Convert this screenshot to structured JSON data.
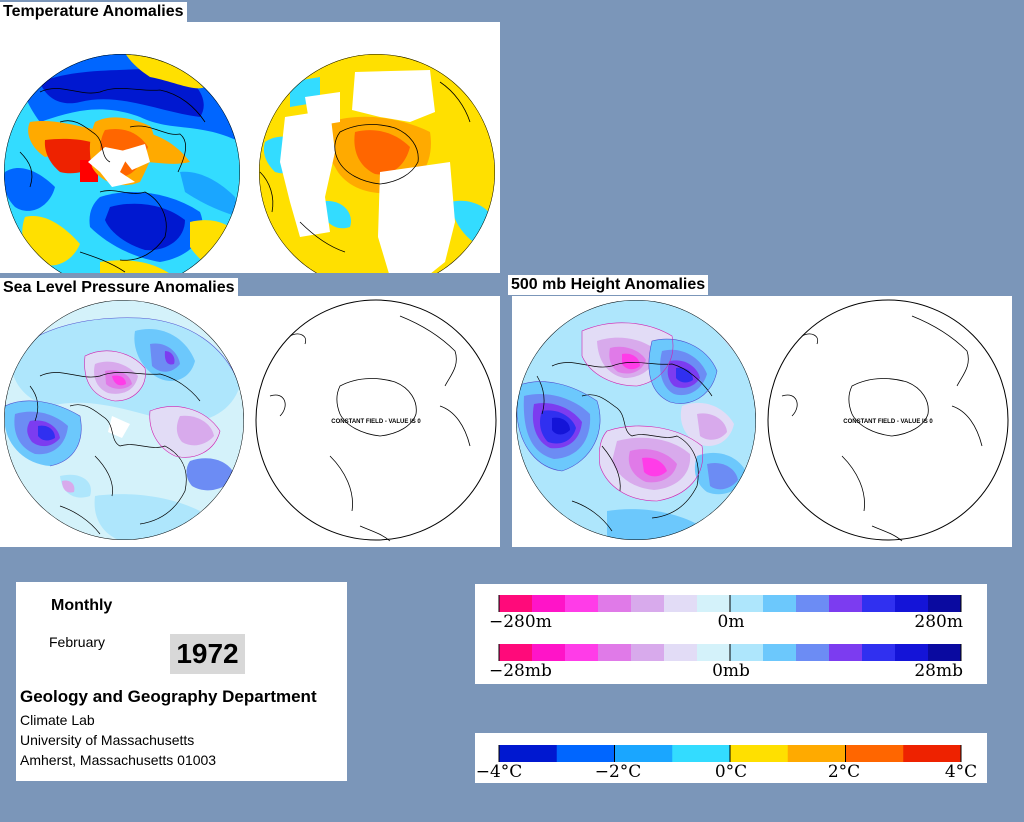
{
  "panels": {
    "temperature": {
      "title": "Temperature Anomalies"
    },
    "slp": {
      "title": "Sea Level Pressure Anomalies",
      "constant_field_label": "CONSTANT FIELD - VALUE IS 0"
    },
    "height500": {
      "title": "500 mb Height Anomalies",
      "constant_field_label": "CONSTANT FIELD - VALUE IS 0"
    }
  },
  "info": {
    "period": "Monthly",
    "month": "February",
    "year": "1972",
    "department": "Geology and Geography Department",
    "lab": "Climate Lab",
    "university": "University of Massachusetts",
    "address": "Amherst, Massachusetts 01003"
  },
  "legends": {
    "height": {
      "labels": [
        "−280m",
        "0m",
        "280m"
      ]
    },
    "pressure": {
      "labels": [
        "−28mb",
        "0mb",
        "28mb"
      ]
    },
    "temperature": {
      "labels": [
        "−4°C",
        "−2°C",
        "0°C",
        "2°C",
        "4°C"
      ]
    }
  },
  "colors": {
    "background": "#7b96b9",
    "anomaly_scale": [
      "#ff0a7a",
      "#ff14c8",
      "#ff3ce8",
      "#e07ae8",
      "#d8aaec",
      "#e2dcf6",
      "#d4f2fa",
      "#aee6fc",
      "#6cc8fc",
      "#6c8cf4",
      "#7c3cf0",
      "#3030f0",
      "#1414d8",
      "#0a0aa0"
    ],
    "temperature_scale": [
      "#0018d0",
      "#0066ff",
      "#1aa6ff",
      "#33dcff",
      "#ffe000",
      "#ffaa00",
      "#ff6600",
      "#ee2200"
    ]
  }
}
